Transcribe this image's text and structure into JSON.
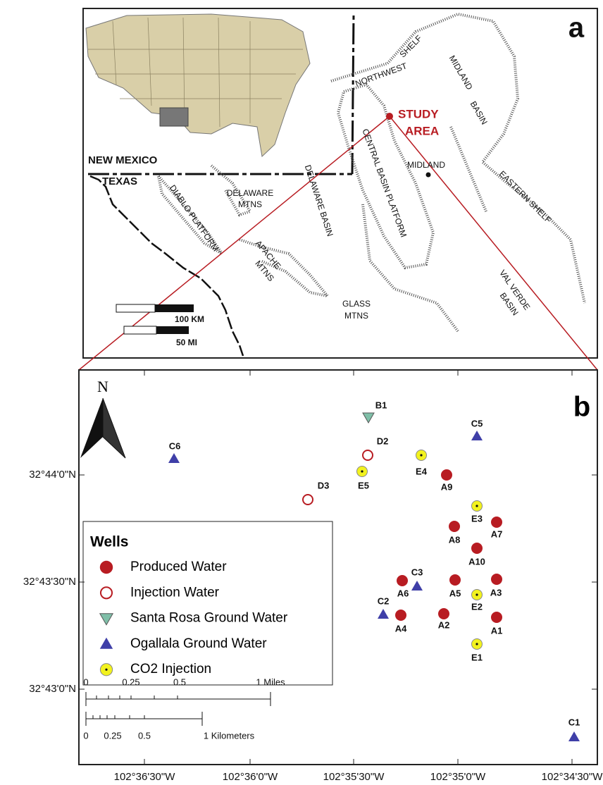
{
  "panel_a": {
    "letter": "a",
    "labels": [
      "NORTHWEST",
      "SHELF",
      "MIDLAND",
      "BASIN",
      "STUDY",
      "AREA",
      "CENTRAL BASIN PLATFORM",
      "DELAWARE BASIN",
      "MIDLAND",
      "EASTERN SHELF",
      "NEW MEXICO",
      "TEXAS",
      "DIABLO PLATFORM",
      "DELAWARE",
      "MTNS",
      "APACHE",
      "MTNS",
      "GLASS",
      "MTNS",
      "VAL VERDE",
      "BASIN",
      "100 KM",
      "50 MI"
    ]
  },
  "panel_b": {
    "letter": "b",
    "north": "N",
    "legend": {
      "title": "Wells",
      "items": [
        {
          "name": "Produced Water",
          "color": "#b81c22"
        },
        {
          "name": "Injection Water",
          "color": "#b81c22"
        },
        {
          "name": "Santa Rosa Ground Water",
          "color": "#7fbfa8"
        },
        {
          "name": "Ogallala Ground Water",
          "color": "#3f3fa8"
        },
        {
          "name": "CO2 Injection",
          "color": "#f2f21e"
        }
      ]
    },
    "wells": [
      {
        "label": "B1",
        "category": 2
      },
      {
        "label": "C5",
        "category": 3
      },
      {
        "label": "C6",
        "category": 3
      },
      {
        "label": "D2",
        "category": 1
      },
      {
        "label": "E4",
        "category": 4
      },
      {
        "label": "E5",
        "category": 4
      },
      {
        "label": "A9",
        "category": 0
      },
      {
        "label": "D3",
        "category": 1
      },
      {
        "label": "E3",
        "category": 4
      },
      {
        "label": "A8",
        "category": 0
      },
      {
        "label": "A7",
        "category": 0
      },
      {
        "label": "A10",
        "category": 0
      },
      {
        "label": "A6",
        "category": 0
      },
      {
        "label": "C3",
        "category": 3
      },
      {
        "label": "A5",
        "category": 0
      },
      {
        "label": "A3",
        "category": 0
      },
      {
        "label": "E2",
        "category": 4
      },
      {
        "label": "C2",
        "category": 3
      },
      {
        "label": "A4",
        "category": 0
      },
      {
        "label": "A2",
        "category": 0
      },
      {
        "label": "A1",
        "category": 0
      },
      {
        "label": "E1",
        "category": 4
      },
      {
        "label": "C1",
        "category": 3
      }
    ],
    "lat_labels": [
      "32°44'0\"N",
      "32°43'30\"N",
      "32°43'0\"N"
    ],
    "lon_labels": [
      "102°36'30\"W",
      "102°36'0\"W",
      "102°35'30\"W",
      "102°35'0\"W",
      "102°34'30\"W"
    ],
    "scale_miles": [
      "0",
      "0.25",
      "0.5",
      "1 Miles"
    ],
    "scale_km": [
      "0",
      "0.25",
      "0.5",
      "1 Kilometers"
    ]
  }
}
